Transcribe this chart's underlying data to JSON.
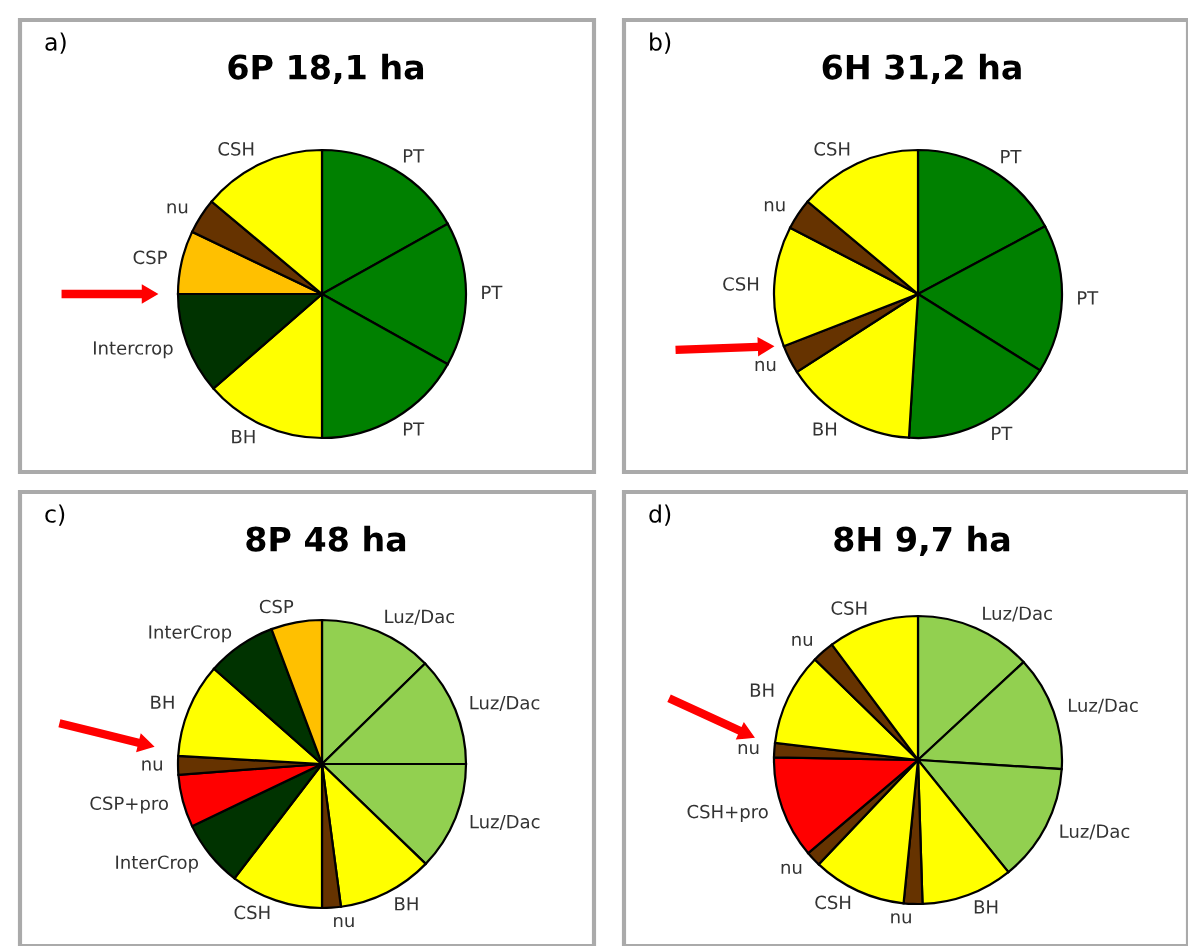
{
  "chart_data": [
    {
      "type": "pie",
      "title": "6P 18,1 ha",
      "annotations": [
        "a)"
      ],
      "categories": [
        "PT",
        "PT",
        "PT",
        "BH",
        "Intercrop",
        "CSP",
        "nu",
        "CSH"
      ],
      "values": [
        16.9,
        16.2,
        16.9,
        13.6,
        11.4,
        7.1,
        4.0,
        13.9
      ],
      "colors": [
        "#008000",
        "#008000",
        "#008000",
        "#ffff00",
        "#003300",
        "#ffc000",
        "#663300",
        "#ffff00"
      ]
    },
    {
      "type": "pie",
      "title": "6H 31,2 ha",
      "annotations": [
        "b)"
      ],
      "categories": [
        "PT",
        "PT",
        "PT",
        "BH",
        "nu",
        "CSH",
        "nu",
        "CSH"
      ],
      "values": [
        17.2,
        16.7,
        17.1,
        14.9,
        3.2,
        13.5,
        3.5,
        13.9
      ],
      "colors": [
        "#008000",
        "#008000",
        "#008000",
        "#ffff00",
        "#663300",
        "#ffff00",
        "#663300",
        "#ffff00"
      ]
    },
    {
      "type": "pie",
      "title": "8P 48 ha",
      "annotations": [
        "c)"
      ],
      "categories": [
        "Luz/Dac",
        "Luz/Dac",
        "Luz/Dac",
        "BH",
        "nu",
        "CSH",
        "InterCrop",
        "CSP+pro",
        "nu",
        "BH",
        "InterCrop",
        "CSP"
      ],
      "values": [
        12.7,
        12.3,
        12.2,
        10.7,
        2.1,
        10.4,
        7.5,
        5.9,
        2.1,
        10.6,
        7.8,
        5.7
      ],
      "colors": [
        "#92d050",
        "#92d050",
        "#92d050",
        "#ffff00",
        "#663300",
        "#ffff00",
        "#003300",
        "#ff0000",
        "#663300",
        "#ffff00",
        "#003300",
        "#ffc000"
      ]
    },
    {
      "type": "pie",
      "title": "8H 9,7 ha",
      "annotations": [
        "d)"
      ],
      "categories": [
        "Luz/Dac",
        "Luz/Dac",
        "Luz/Dac",
        "BH",
        "nu",
        "CSH",
        "nu",
        "CSH+pro",
        "nu",
        "BH",
        "nu",
        "CSH"
      ],
      "values": [
        13.1,
        12.9,
        13.2,
        10.3,
        2.1,
        10.5,
        1.7,
        11.5,
        1.6,
        10.4,
        2.5,
        10.2
      ],
      "colors": [
        "#92d050",
        "#92d050",
        "#92d050",
        "#ffff00",
        "#663300",
        "#ffff00",
        "#663300",
        "#ff0000",
        "#663300",
        "#ffff00",
        "#663300",
        "#ffff00"
      ]
    }
  ]
}
